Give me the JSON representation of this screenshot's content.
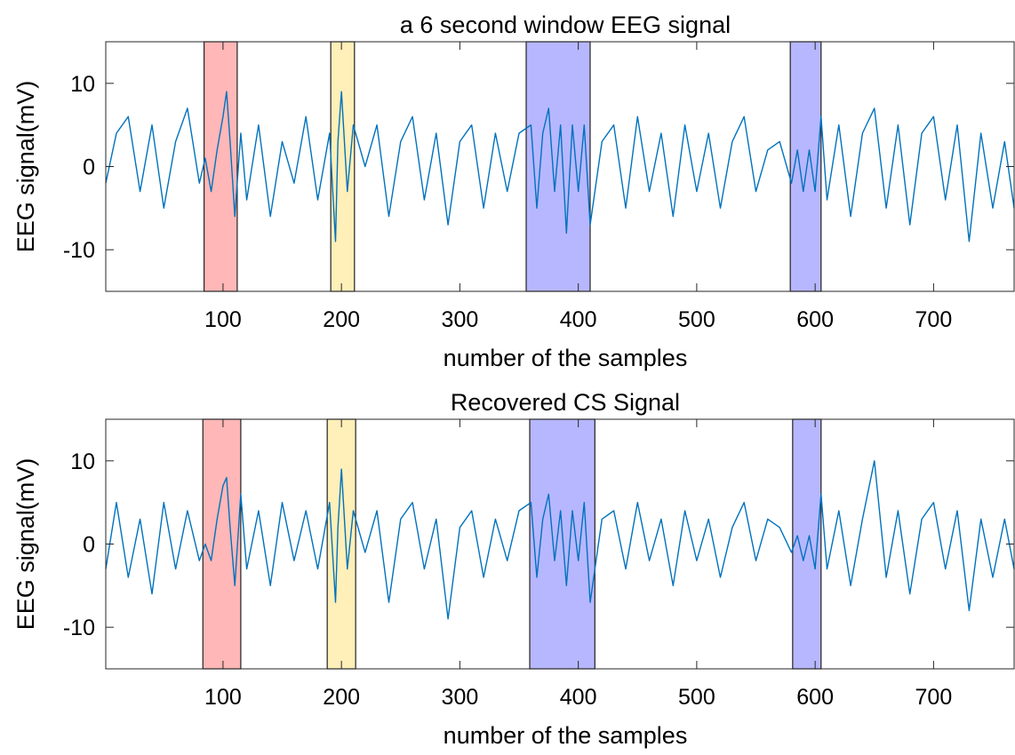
{
  "figure": {
    "panels_count": 2
  },
  "chart_data": [
    {
      "type": "line",
      "title": "a 6 second window EEG signal",
      "xlabel": "number of the samples",
      "ylabel": "EEG signal(mV)",
      "xlim": [
        1,
        768
      ],
      "ylim": [
        -15,
        15
      ],
      "xticks": [
        100,
        200,
        300,
        400,
        500,
        600,
        700
      ],
      "yticks": [
        10,
        0,
        -10
      ],
      "grid": false,
      "line_color": "#0072BD",
      "series": [
        {
          "x": [
            1,
            10,
            20,
            30,
            40,
            50,
            60,
            70,
            80,
            85,
            90,
            95,
            100,
            103,
            106,
            110,
            115,
            120,
            130,
            140,
            150,
            160,
            170,
            180,
            190,
            195,
            197,
            200,
            205,
            210,
            220,
            230,
            240,
            250,
            260,
            270,
            280,
            290,
            300,
            310,
            320,
            330,
            340,
            350,
            360,
            365,
            370,
            375,
            380,
            385,
            390,
            395,
            400,
            405,
            410,
            420,
            430,
            440,
            450,
            460,
            470,
            480,
            490,
            500,
            510,
            520,
            530,
            540,
            550,
            560,
            570,
            580,
            585,
            590,
            595,
            600,
            605,
            610,
            620,
            630,
            640,
            650,
            660,
            670,
            680,
            690,
            700,
            710,
            720,
            730,
            740,
            750,
            760,
            768
          ],
          "y": [
            -2,
            4,
            6,
            -3,
            5,
            -5,
            3,
            7,
            -2,
            1,
            -3,
            2,
            6,
            9,
            3,
            -6,
            4,
            -4,
            5,
            -6,
            3,
            -2,
            6,
            -4,
            4,
            -9,
            3,
            9,
            -3,
            5,
            0,
            5,
            -6,
            3,
            6,
            -4,
            4,
            -7,
            3,
            5,
            -5,
            4,
            -3,
            4,
            5,
            -5,
            4,
            7,
            -3,
            5,
            -8,
            5,
            -3,
            5,
            -7,
            3,
            5,
            -5,
            6,
            -3,
            4,
            -6,
            5,
            -3,
            4,
            -5,
            3,
            6,
            -3,
            2,
            3,
            -2,
            2,
            -3,
            2,
            -3,
            6,
            -4,
            5,
            -6,
            4,
            7,
            -5,
            5,
            -7,
            4,
            6,
            -4,
            5,
            -9,
            4,
            -5,
            3,
            -5
          ]
        }
      ],
      "highlights": [
        {
          "xmin": 84,
          "xmax": 112,
          "color": "#FF9999"
        },
        {
          "xmin": 191,
          "xmax": 211,
          "color": "#FFE89A"
        },
        {
          "xmin": 356,
          "xmax": 410,
          "color": "#9999FF"
        },
        {
          "xmin": 579,
          "xmax": 605,
          "color": "#9999FF"
        }
      ]
    },
    {
      "type": "line",
      "title": "Recovered CS Signal",
      "xlabel": "number of the samples",
      "ylabel": "EEG signal(mV)",
      "xlim": [
        1,
        768
      ],
      "ylim": [
        -15,
        15
      ],
      "xticks": [
        100,
        200,
        300,
        400,
        500,
        600,
        700
      ],
      "yticks": [
        10,
        0,
        -10
      ],
      "grid": false,
      "line_color": "#0072BD",
      "series": [
        {
          "x": [
            1,
            10,
            20,
            30,
            40,
            50,
            60,
            70,
            80,
            85,
            90,
            95,
            100,
            103,
            106,
            110,
            115,
            120,
            130,
            140,
            150,
            160,
            170,
            180,
            190,
            195,
            197,
            200,
            205,
            210,
            220,
            230,
            240,
            250,
            260,
            270,
            280,
            290,
            300,
            310,
            320,
            330,
            340,
            350,
            360,
            365,
            370,
            375,
            380,
            385,
            390,
            395,
            400,
            405,
            410,
            420,
            430,
            440,
            450,
            460,
            470,
            480,
            490,
            500,
            510,
            520,
            530,
            540,
            550,
            560,
            570,
            580,
            585,
            590,
            595,
            600,
            605,
            610,
            620,
            630,
            640,
            650,
            660,
            670,
            680,
            690,
            700,
            710,
            720,
            730,
            740,
            750,
            760,
            768
          ],
          "y": [
            -3,
            5,
            -4,
            3,
            -6,
            5,
            -3,
            4,
            -2,
            0,
            -2,
            3,
            7,
            8,
            2,
            -5,
            6,
            -3,
            4,
            -5,
            5,
            -2,
            4,
            -3,
            5,
            -7,
            2,
            9,
            -3,
            4,
            -1,
            4,
            -7,
            3,
            5,
            -3,
            3,
            -9,
            2,
            4,
            -4,
            3,
            -2,
            4,
            5,
            -4,
            3,
            6,
            -2,
            4,
            -5,
            4,
            -2,
            5,
            -7,
            3,
            4,
            -3,
            5,
            -2,
            3,
            -5,
            4,
            -2,
            3,
            -4,
            2,
            5,
            -2,
            3,
            2,
            -1,
            1,
            -2,
            1,
            -3,
            6,
            -3,
            4,
            -5,
            3,
            10,
            -4,
            4,
            -6,
            3,
            5,
            -3,
            4,
            -8,
            3,
            -4,
            3,
            -3
          ]
        }
      ],
      "highlights": [
        {
          "xmin": 83,
          "xmax": 115,
          "color": "#FF9999"
        },
        {
          "xmin": 188,
          "xmax": 212,
          "color": "#FFE89A"
        },
        {
          "xmin": 359,
          "xmax": 414,
          "color": "#9999FF"
        },
        {
          "xmin": 581,
          "xmax": 605,
          "color": "#9999FF"
        }
      ]
    }
  ]
}
